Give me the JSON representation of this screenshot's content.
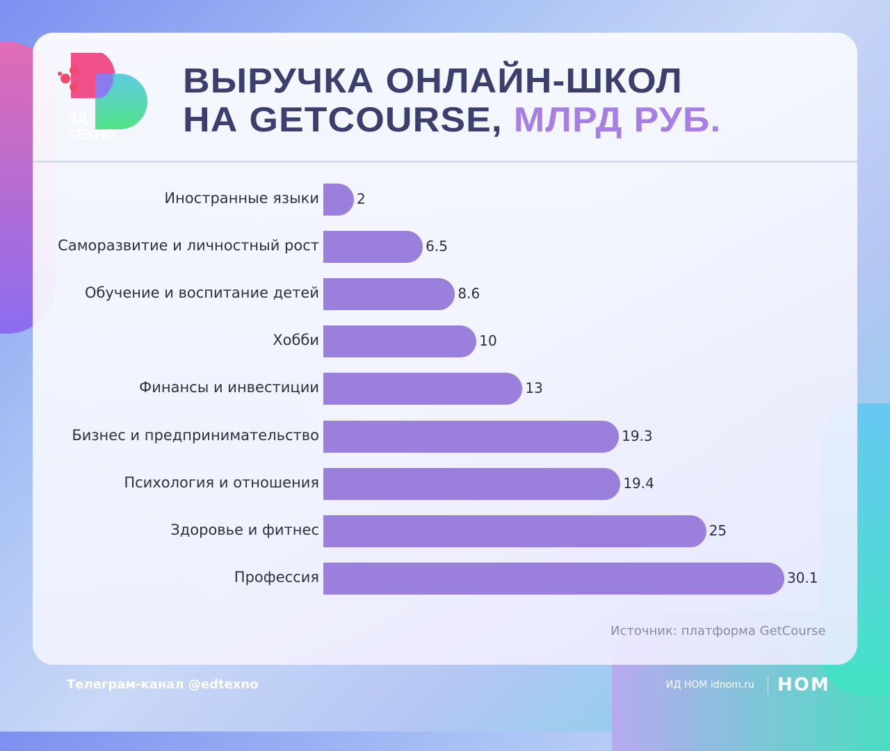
{
  "header": {
    "title_line1": "ВЫРУЧКА ОНЛАЙН-ШКОЛ",
    "title_line2_main": "НА GETCOURSE,",
    "title_line2_accent": "МЛРД РУБ.",
    "logo_text": "ЭД ТЕХНО"
  },
  "chart_data": {
    "type": "bar",
    "orientation": "horizontal",
    "title": "Выручка онлайн-школ на GetCourse, млрд руб.",
    "categories": [
      "Иностранные языки",
      "Саморазвитие и личностный рост",
      "Обучение и воспитание детей",
      "Хобби",
      "Финансы и инвестиции",
      "Бизнес и предпринимательство",
      "Психология и отношения",
      "Здоровье и фитнес",
      "Профессия"
    ],
    "values": [
      2,
      6.5,
      8.6,
      10,
      13,
      19.3,
      19.4,
      25,
      30.1
    ],
    "value_labels": [
      "2",
      "6.5",
      "8.6",
      "10",
      "13",
      "19.3",
      "19.4",
      "25",
      "30.1"
    ],
    "bar_color": "#9b7fdc",
    "xlim": [
      0,
      30.1
    ]
  },
  "source": "Источник: платформа GetCourse",
  "footer": {
    "telegram": "Телеграм-канал @edtexno",
    "publisher": "ИД НОМ idnom.ru",
    "brand": "НОМ"
  }
}
